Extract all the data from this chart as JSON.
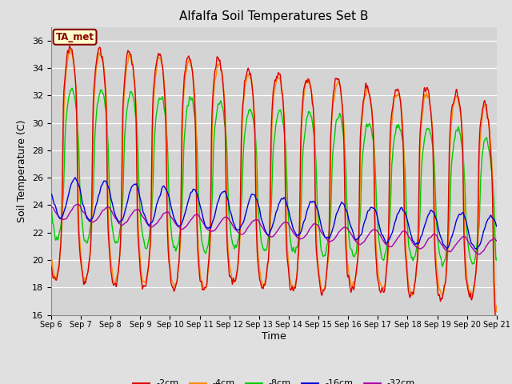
{
  "title": "Alfalfa Soil Temperatures Set B",
  "xlabel": "Time",
  "ylabel": "Soil Temperature (C)",
  "ylim": [
    16,
    37
  ],
  "xlim": [
    0,
    15
  ],
  "background_color": "#e0e0e0",
  "plot_bg_color": "#d4d4d4",
  "annotation_text": "TA_met",
  "annotation_box_color": "#ffffcc",
  "annotation_border_color": "#8b0000",
  "annotation_text_color": "#8b0000",
  "colors": {
    "-2cm": "#dd0000",
    "-4cm": "#ff8800",
    "-8cm": "#00cc00",
    "-16cm": "#0000dd",
    "-32cm": "#aa00aa"
  },
  "line_width": 1.0,
  "tick_labels": [
    "Sep 6",
    "Sep 7",
    "Sep 8",
    "Sep 9",
    "Sep 10",
    "Sep 11",
    "Sep 12",
    "Sep 13",
    "Sep 14",
    "Sep 15",
    "Sep 16",
    "Sep 17",
    "Sep 18",
    "Sep 19",
    "Sep 20",
    "Sep 21"
  ],
  "yticks": [
    16,
    18,
    20,
    22,
    24,
    26,
    28,
    30,
    32,
    34,
    36
  ]
}
